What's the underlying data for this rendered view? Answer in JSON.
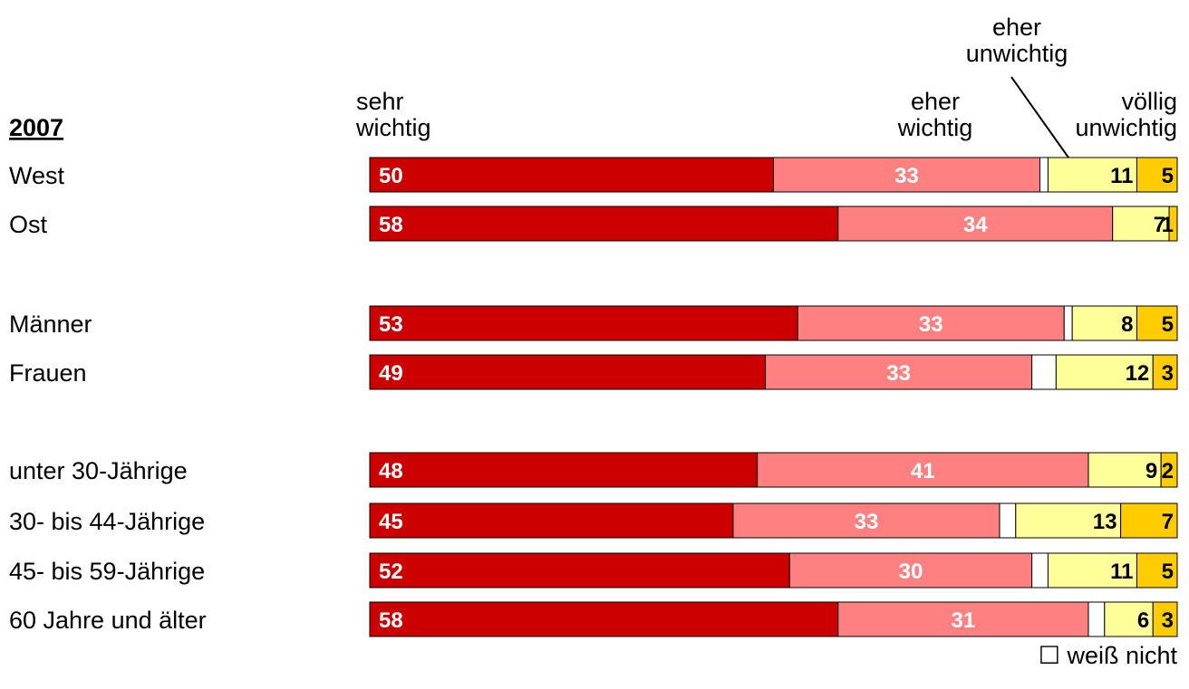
{
  "chart_data": {
    "type": "bar",
    "orientation": "horizontal",
    "stacked": true,
    "group_label": "2007",
    "categories": [
      "West",
      "Ost",
      "Männer",
      "Frauen",
      "unter 30-Jährige",
      "30- bis 44-Jährige",
      "45- bis 59-Jährige",
      "60 Jahre und älter"
    ],
    "series": [
      {
        "name": "sehr wichtig",
        "name_lines": [
          "sehr",
          "wichtig"
        ],
        "color": "#cc0000",
        "label_color": "#ffffff",
        "values": [
          50,
          58,
          53,
          49,
          48,
          45,
          52,
          58
        ]
      },
      {
        "name": "eher wichtig",
        "name_lines": [
          "eher",
          "wichtig"
        ],
        "color": "#ff8080",
        "label_color": "#ffffff",
        "values": [
          33,
          34,
          33,
          33,
          41,
          33,
          30,
          31
        ]
      },
      {
        "name": "weiß nicht",
        "name_lines": [
          "weiß nicht"
        ],
        "color": "#ffffff",
        "label_color": "#000000",
        "values": [
          1,
          0,
          1,
          3,
          0,
          2,
          2,
          2
        ]
      },
      {
        "name": "eher unwichtig",
        "name_lines": [
          "eher",
          "unwichtig"
        ],
        "color": "#ffff99",
        "label_color": "#000000",
        "values": [
          11,
          7,
          8,
          12,
          9,
          13,
          11,
          6
        ]
      },
      {
        "name": "völlig unwichtig",
        "name_lines": [
          "völlig",
          "unwichtig"
        ],
        "color": "#ffcc00",
        "label_color": "#000000",
        "values": [
          5,
          1,
          5,
          3,
          2,
          7,
          5,
          3
        ]
      }
    ],
    "show_value_labels": [
      true,
      true,
      false,
      true,
      true
    ],
    "xlim": [
      0,
      100
    ],
    "grid": false,
    "legend": {
      "position": "bottom-right",
      "entry": "weiß nicht",
      "symbol": "☐"
    }
  }
}
